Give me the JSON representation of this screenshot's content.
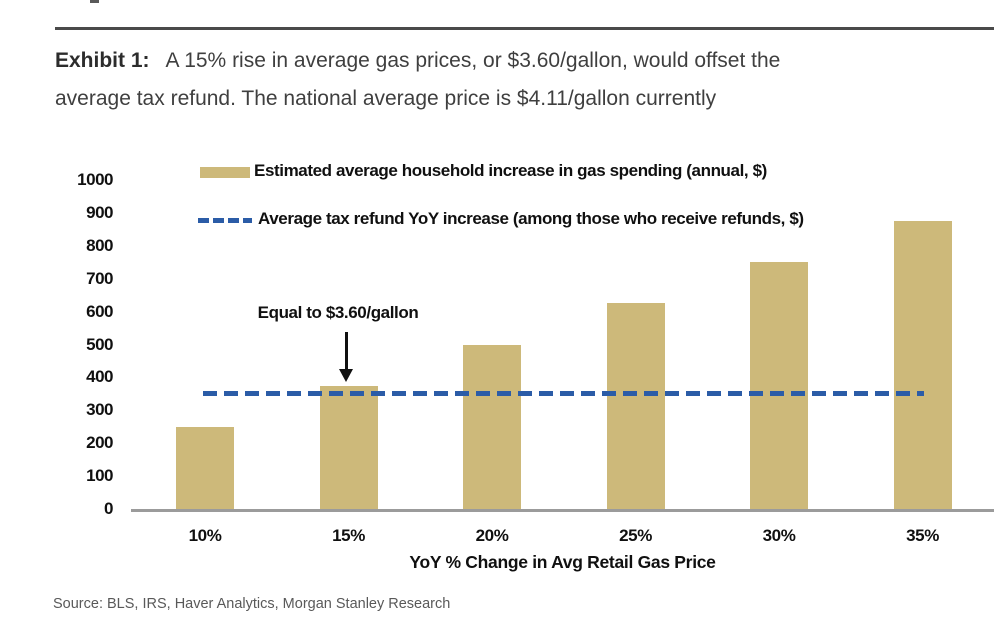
{
  "header": {
    "exhibit_label": "Exhibit 1:",
    "title_line1": "A 15% rise in average gas prices, or $3.60/gallon, would offset the",
    "title_line2": "average tax refund. The national average price is $4.11/gallon currently"
  },
  "chart_data": {
    "type": "bar",
    "categories": [
      "10%",
      "15%",
      "20%",
      "25%",
      "30%",
      "35%"
    ],
    "series": [
      {
        "name": "Estimated average household increase in gas spending (annual, $)",
        "type": "bar",
        "color": "#CDB97A",
        "values": [
          250,
          375,
          500,
          625,
          750,
          875
        ]
      },
      {
        "name": "Average tax refund YoY increase (among those who receive refunds, $)",
        "type": "line",
        "style": "dashed",
        "color": "#2B5CA7",
        "values": [
          350,
          350,
          350,
          350,
          350,
          350
        ]
      }
    ],
    "xlabel": "YoY % Change in Avg Retail Gas Price",
    "ylabel": "",
    "ylim": [
      0,
      1000
    ],
    "yticks": [
      0,
      100,
      200,
      300,
      400,
      500,
      600,
      700,
      800,
      900,
      1000
    ],
    "grid": false,
    "legend_position": "top-left",
    "annotation": {
      "text": "Equal to $3.60/gallon",
      "target_category": "15%"
    }
  },
  "footer": {
    "source": "Source: BLS, IRS, Haver Analytics, Morgan Stanley Research"
  },
  "colors": {
    "bar_fill": "#CDB97A",
    "refund_line": "#2B5CA7",
    "axis_line": "#9B9B9B",
    "divider_rule": "#4A4A4A",
    "title_text": "#3F3F3F",
    "label_text": "#101010",
    "source_text": "#595959"
  }
}
